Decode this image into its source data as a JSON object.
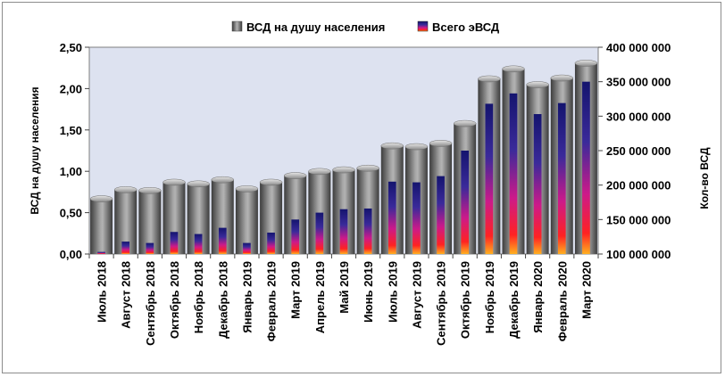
{
  "chart_data": {
    "type": "bar",
    "categories": [
      "Июль 2018",
      "Август 2018",
      "Сентябрь 2018",
      "Октябрь 2018",
      "Ноябрь 2018",
      "Декабрь 2018",
      "Январь 2019",
      "Февраль 2019",
      "Март 2019",
      "Апрель 2019",
      "Май 2019",
      "Июнь 2019",
      "Июль 2019",
      "Август 2019",
      "Сентябрь 2019",
      "Октябрь 2019",
      "Ноябрь 2019",
      "Декабрь 2019",
      "Январь 2020",
      "Февраль 2020",
      "Март 2020"
    ],
    "series": [
      {
        "name": "ВСД на душу населения",
        "axis": "left",
        "color": "#7f7f7f",
        "values": [
          0.7,
          0.81,
          0.8,
          0.9,
          0.88,
          0.93,
          0.82,
          0.9,
          0.98,
          1.03,
          1.05,
          1.07,
          1.34,
          1.33,
          1.37,
          1.61,
          2.15,
          2.27,
          2.08,
          2.16,
          2.34
        ]
      },
      {
        "name": "Всего эВСД",
        "axis": "right",
        "color": "#1a1a8c",
        "values": [
          103000000,
          118000000,
          116000000,
          132000000,
          129000000,
          138000000,
          116000000,
          131000000,
          150000000,
          160000000,
          165000000,
          166000000,
          205000000,
          204000000,
          213000000,
          250000000,
          318000000,
          333000000,
          303000000,
          319000000,
          350000000
        ]
      }
    ],
    "ylabel": "ВСД на душу населения",
    "y2label": "Кол-во ВСД",
    "ylim": [
      0,
      2.5
    ],
    "y_ticks": [
      "0,00",
      "0,50",
      "1,00",
      "1,50",
      "2,00",
      "2,50"
    ],
    "y2lim": [
      100000000,
      400000000
    ],
    "y2_ticks": [
      "100 000 000",
      "150 000 000",
      "200 000 000",
      "250 000 000",
      "300 000 000",
      "350 000 000",
      "400 000 000"
    ],
    "legend_position": "top",
    "grid": false
  }
}
